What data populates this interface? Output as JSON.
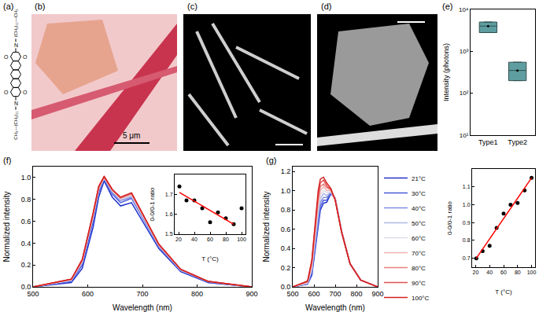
{
  "panel_labels": [
    "(a)",
    "(b)",
    "(c)",
    "(d)",
    "(e)",
    "(f)",
    "(g)"
  ],
  "structure": {
    "oxygen": "O",
    "nitrogen": "N",
    "chain_top": "(CH₂)₁₁—CH₃",
    "chain_bottom": "CH₃—(CH₂)₁₁"
  },
  "images": {
    "scale_bar_text": "5 μm"
  },
  "chart_data": [
    {
      "type": "box",
      "ylabel": "Intensity (photons)",
      "log": "y",
      "categories": [
        "Type1",
        "Type2"
      ],
      "q1": [
        2800,
        200
      ],
      "median": [
        4000,
        350
      ],
      "q3": [
        5000,
        550
      ],
      "mean": [
        4000,
        350
      ],
      "color": "#5f9ea0",
      "ylim": [
        10,
        10000
      ],
      "yticks": [
        {
          "value": 10,
          "label": "10¹"
        },
        {
          "value": 100,
          "label": "10²"
        },
        {
          "value": 1000,
          "label": "10³"
        },
        {
          "value": 10000,
          "label": "10⁴"
        }
      ]
    },
    {
      "type": "line",
      "xlabel": "Wavelength (nm)",
      "ylabel": "Normalized intensity",
      "x": [
        500,
        570,
        590,
        610,
        620,
        630,
        645,
        660,
        680,
        700,
        730,
        770,
        820,
        900
      ],
      "xlim": [
        500,
        900
      ],
      "xticks": [
        500,
        600,
        700,
        800,
        900
      ],
      "ylim": [
        0,
        1.1
      ],
      "yticks": [
        {
          "value": 0,
          "label": "0.0"
        },
        0.2,
        0.4,
        0.6,
        0.8,
        {
          "value": 1,
          "label": "1.0"
        }
      ],
      "series": [
        {
          "name": "21°C",
          "color": "#2233cc",
          "values": [
            0,
            0.04,
            0.17,
            0.55,
            0.82,
            0.97,
            0.82,
            0.74,
            0.77,
            0.6,
            0.35,
            0.14,
            0.04,
            0
          ]
        },
        {
          "name": "30°C",
          "color": "#4a5ad8",
          "values": [
            0,
            0.05,
            0.2,
            0.6,
            0.86,
            0.99,
            0.85,
            0.77,
            0.81,
            0.63,
            0.37,
            0.15,
            0.04,
            0
          ]
        },
        {
          "name": "40°C",
          "color": "#7f8ce0",
          "values": [
            0,
            0.06,
            0.22,
            0.63,
            0.88,
            0.99,
            0.86,
            0.79,
            0.82,
            0.64,
            0.37,
            0.15,
            0.05,
            0
          ]
        },
        {
          "name": "50°C",
          "color": "#b0b8e8",
          "values": [
            0,
            0.06,
            0.23,
            0.64,
            0.89,
            1.0,
            0.87,
            0.8,
            0.83,
            0.65,
            0.38,
            0.15,
            0.05,
            0
          ]
        },
        {
          "name": "60°C",
          "color": "#e2dce8",
          "values": [
            0,
            0.06,
            0.23,
            0.65,
            0.9,
            1.0,
            0.88,
            0.8,
            0.84,
            0.66,
            0.38,
            0.16,
            0.05,
            0
          ]
        },
        {
          "name": "70°C",
          "color": "#f0b0b0",
          "values": [
            0,
            0.07,
            0.24,
            0.66,
            0.9,
            1.0,
            0.88,
            0.81,
            0.85,
            0.66,
            0.38,
            0.16,
            0.05,
            0
          ]
        },
        {
          "name": "80°C",
          "color": "#e88080",
          "values": [
            0,
            0.07,
            0.24,
            0.67,
            0.91,
            1.01,
            0.89,
            0.81,
            0.85,
            0.67,
            0.39,
            0.16,
            0.05,
            0
          ]
        },
        {
          "name": "90°C",
          "color": "#e05050",
          "values": [
            0,
            0.07,
            0.25,
            0.67,
            0.91,
            1.01,
            0.89,
            0.82,
            0.86,
            0.67,
            0.39,
            0.16,
            0.05,
            0
          ]
        },
        {
          "name": "100°C",
          "color": "#d42020",
          "values": [
            0,
            0.07,
            0.25,
            0.68,
            0.92,
            1.01,
            0.89,
            0.82,
            0.86,
            0.67,
            0.39,
            0.16,
            0.05,
            0
          ]
        }
      ],
      "inset": {
        "type": "scatter",
        "xlabel": "T (°C)",
        "ylabel": "0-0/0-1 ratio",
        "x": [
          21,
          30,
          40,
          50,
          60,
          70,
          80,
          90,
          100
        ],
        "values": [
          1.74,
          1.67,
          1.67,
          1.63,
          1.56,
          1.61,
          1.58,
          1.55,
          1.63
        ],
        "color": "#000000",
        "xlim": [
          15,
          105
        ],
        "xticks": [
          20,
          40,
          60,
          80,
          100
        ],
        "ylim": [
          1.5,
          1.8
        ],
        "yticks": [
          1.5,
          1.6,
          1.7
        ],
        "fit": {
          "x": [
            21,
            90
          ],
          "values": [
            1.71,
            1.55
          ],
          "color": "#ff0000"
        }
      }
    },
    {
      "type": "line",
      "xlabel": "Wavelength (nm)",
      "ylabel": "Normalized intensity",
      "legend": "upper right",
      "x": [
        500,
        570,
        590,
        610,
        620,
        630,
        645,
        660,
        680,
        700,
        730,
        770,
        820,
        900
      ],
      "xlim": [
        500,
        900
      ],
      "xticks": [
        500,
        600,
        700,
        800,
        900
      ],
      "ylim": [
        0,
        1.25
      ],
      "yticks": [
        {
          "value": 0,
          "label": "0.0"
        },
        0.2,
        0.4,
        0.6,
        0.8,
        {
          "value": 1,
          "label": "1.0"
        },
        1.2
      ],
      "series": [
        {
          "name": "21°C",
          "color": "#2233cc",
          "values": [
            0,
            0.03,
            0.12,
            0.45,
            0.65,
            0.8,
            0.87,
            0.88,
            0.97,
            0.92,
            0.58,
            0.24,
            0.07,
            0
          ]
        },
        {
          "name": "30°C",
          "color": "#4a5ad8",
          "values": [
            0,
            0.03,
            0.14,
            0.49,
            0.69,
            0.84,
            0.9,
            0.9,
            0.98,
            0.92,
            0.58,
            0.24,
            0.07,
            0
          ]
        },
        {
          "name": "40°C",
          "color": "#7f8ce0",
          "values": [
            0,
            0.04,
            0.16,
            0.53,
            0.73,
            0.88,
            0.93,
            0.93,
            0.98,
            0.92,
            0.58,
            0.24,
            0.07,
            0
          ]
        },
        {
          "name": "50°C",
          "color": "#b0b8e8",
          "values": [
            0,
            0.04,
            0.18,
            0.57,
            0.78,
            0.92,
            0.97,
            0.95,
            0.99,
            0.91,
            0.58,
            0.24,
            0.07,
            0
          ]
        },
        {
          "name": "60°C",
          "color": "#e2dce8",
          "values": [
            0,
            0.04,
            0.2,
            0.61,
            0.82,
            0.96,
            1.0,
            0.98,
            0.99,
            0.91,
            0.58,
            0.24,
            0.07,
            0
          ]
        },
        {
          "name": "70°C",
          "color": "#f0b0b0",
          "values": [
            0,
            0.05,
            0.22,
            0.65,
            0.87,
            1.0,
            1.04,
            1.0,
            1.0,
            0.91,
            0.57,
            0.24,
            0.07,
            0
          ]
        },
        {
          "name": "80°C",
          "color": "#e88080",
          "values": [
            0,
            0.05,
            0.24,
            0.7,
            0.91,
            1.04,
            1.07,
            1.03,
            1.01,
            0.91,
            0.57,
            0.24,
            0.07,
            0
          ]
        },
        {
          "name": "90°C",
          "color": "#e05050",
          "values": [
            0,
            0.06,
            0.26,
            0.74,
            0.95,
            1.08,
            1.11,
            1.05,
            1.01,
            0.9,
            0.57,
            0.24,
            0.07,
            0
          ]
        },
        {
          "name": "100°C",
          "color": "#d42020",
          "values": [
            0,
            0.06,
            0.28,
            0.78,
            1.0,
            1.12,
            1.14,
            1.08,
            1.02,
            0.9,
            0.57,
            0.24,
            0.07,
            0
          ]
        }
      ],
      "inset": {
        "type": "scatter",
        "xlabel": "T (°C)",
        "ylabel": "0-0/0-1 ratio",
        "x": [
          21,
          30,
          40,
          50,
          60,
          70,
          80,
          90,
          100
        ],
        "values": [
          0.7,
          0.74,
          0.77,
          0.87,
          0.95,
          1.0,
          1.01,
          1.08,
          1.15
        ],
        "color": "#000000",
        "xlim": [
          15,
          105
        ],
        "xticks": [
          20,
          40,
          60,
          80,
          100
        ],
        "ylim": [
          0.65,
          1.2
        ],
        "yticks": [
          0.7,
          0.8,
          0.9,
          {
            "value": 1,
            "label": "1.0"
          },
          1.1
        ],
        "fit": {
          "x": [
            21,
            100
          ],
          "values": [
            0.7,
            1.15
          ],
          "color": "#ff0000"
        }
      }
    }
  ]
}
